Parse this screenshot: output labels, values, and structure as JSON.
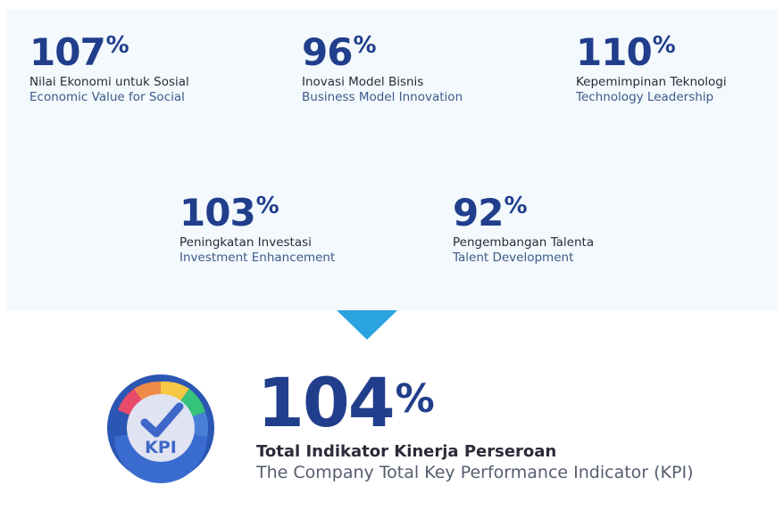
{
  "colors": {
    "panel_bg": "#f3f9fd",
    "number_blue": "#213e8c",
    "arrow_blue": "#2aa3e0"
  },
  "kpis": [
    {
      "value": "107",
      "unit": "%",
      "label_id": "Nilai Ekonomi untuk Sosial",
      "label_en": "Economic Value for Social"
    },
    {
      "value": "96",
      "unit": "%",
      "label_id": "Inovasi Model Bisnis",
      "label_en": "Business Model Innovation"
    },
    {
      "value": "110",
      "unit": "%",
      "label_id": "Kepemimpinan Teknologi",
      "label_en": "Technology Leadership"
    },
    {
      "value": "103",
      "unit": "%",
      "label_id": "Peningkatan Investasi",
      "label_en": "Investment Enhancement"
    },
    {
      "value": "92",
      "unit": "%",
      "label_id": "Pengembangan Talenta",
      "label_en": "Talent Development"
    }
  ],
  "total": {
    "value": "104",
    "unit": "%",
    "label_id": "Total Indikator Kinerja Perseroan",
    "label_en": "The Company Total Key Performance Indicator (KPI)",
    "icon_text": "KPI",
    "icon": "kpi-gauge-icon"
  }
}
